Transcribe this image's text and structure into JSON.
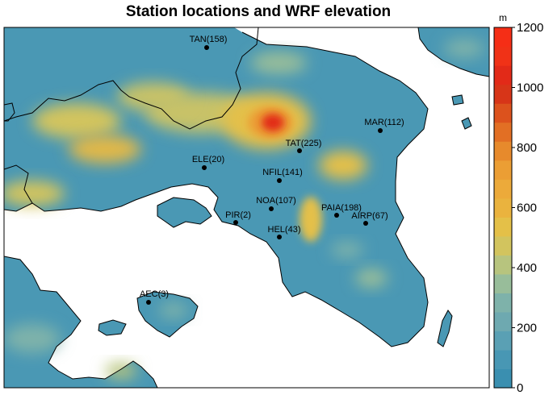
{
  "title": "Station locations and WRF elevation",
  "legend": {
    "unit": "m",
    "ticks": [
      "0",
      "200",
      "400",
      "600",
      "800",
      "1000",
      "1200"
    ],
    "tick_values": [
      0,
      200,
      400,
      600,
      800,
      1000,
      1200
    ],
    "range": [
      0,
      1200
    ],
    "colors": [
      "#3a8fb0",
      "#4897b4",
      "#5aa0b4",
      "#6ea9b0",
      "#7eb2aa",
      "#98bd9a",
      "#b7c47e",
      "#d2c45e",
      "#e4c048",
      "#eab33e",
      "#ecaa3a",
      "#eb9e34",
      "#e78a2c",
      "#e26f24",
      "#dc521d",
      "#d73518",
      "#e22a18",
      "#f03217",
      "#f52e16"
    ],
    "placement": "right"
  },
  "stations": [
    {
      "label": "TAN(158)",
      "name": "TAN",
      "elevation": 158
    },
    {
      "label": "MAR(112)",
      "name": "MAR",
      "elevation": 112
    },
    {
      "label": "TAT(225)",
      "name": "TAT",
      "elevation": 225
    },
    {
      "label": "ELE(20)",
      "name": "ELE",
      "elevation": 20
    },
    {
      "label": "NFIL(141)",
      "name": "NFIL",
      "elevation": 141
    },
    {
      "label": "NOA(107)",
      "name": "NOA",
      "elevation": 107
    },
    {
      "label": "PAIA(198)",
      "name": "PAIA",
      "elevation": 198
    },
    {
      "label": "AIRP(67)",
      "name": "AIRP",
      "elevation": 67
    },
    {
      "label": "PIR(2)",
      "name": "PIR",
      "elevation": 2
    },
    {
      "label": "HEL(43)",
      "name": "HEL",
      "elevation": 43
    },
    {
      "label": "AEC(3)",
      "name": "AEC",
      "elevation": 3
    }
  ],
  "colors": {
    "sea": "#ffffff",
    "lowland": "#4a98b4",
    "coast": "#000000"
  }
}
